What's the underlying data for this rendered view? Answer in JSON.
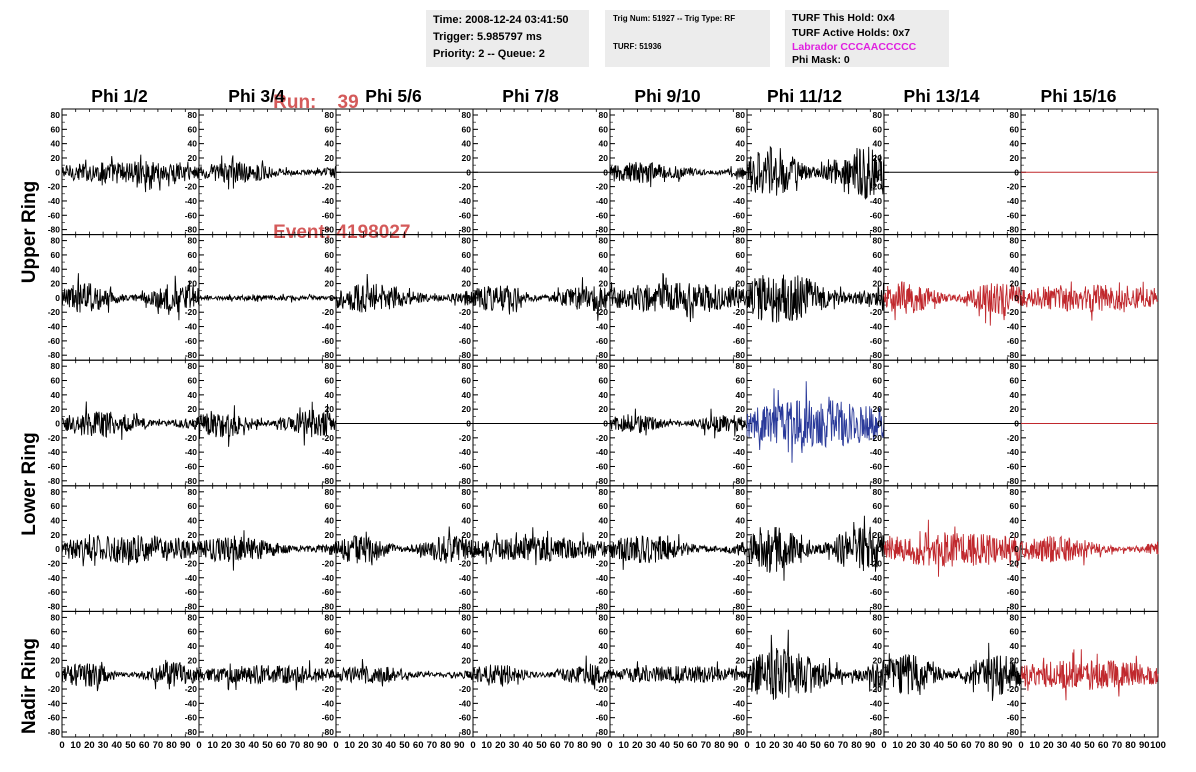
{
  "header": {
    "run_label": "Run:",
    "run_value": "39",
    "event_label": "Event:",
    "event_value": "4198027",
    "run_color": "#d45a5a",
    "time": "Time: 2008-12-24 03:41:50",
    "trigger": "Trigger: 5.985797 ms",
    "priority": "Priority: 2 -- Queue: 2",
    "trig_num": "Trig Num: 51927 -- Trig Type: RF",
    "turf": "TURF: 51936",
    "turf_this_hold": "TURF This Hold: 0x4",
    "turf_active_holds": "TURF Active Holds: 0x7",
    "labrador": "Labrador CCCAACCCCC",
    "labrador_color": "#e020e0",
    "phi_mask": "Phi Mask: 0"
  },
  "columns": [
    "Phi 1/2",
    "Phi 3/4",
    "Phi 5/6",
    "Phi 7/8",
    "Phi 9/10",
    "Phi 11/12",
    "Phi 13/14",
    "Phi 15/16"
  ],
  "rings": [
    "Upper Ring",
    "Lower Ring",
    "Nadir Ring"
  ],
  "chart_data": {
    "type": "line",
    "title": "",
    "xlabel": "",
    "ylabel": "",
    "xlim": [
      0,
      100
    ],
    "ylim": [
      -80,
      80
    ],
    "y_ticks": [
      80,
      60,
      40,
      20,
      0,
      -20,
      -40,
      -60,
      -80
    ],
    "x_ticks": [
      0,
      10,
      20,
      30,
      40,
      50,
      60,
      70,
      80,
      90,
      100
    ],
    "rows": 5,
    "cols": 8,
    "colors": {
      "black": "#000000",
      "red": "#c0282d",
      "blue": "#2a3a9a"
    },
    "panels": [
      {
        "row": 0,
        "col": 0,
        "color": "black",
        "amp": 13,
        "flat": false
      },
      {
        "row": 0,
        "col": 1,
        "color": "black",
        "amp": 12,
        "flat": false
      },
      {
        "row": 0,
        "col": 2,
        "color": "black",
        "amp": 0,
        "flat": true
      },
      {
        "row": 0,
        "col": 3,
        "color": "black",
        "amp": 0,
        "flat": true
      },
      {
        "row": 0,
        "col": 4,
        "color": "black",
        "amp": 13,
        "flat": false
      },
      {
        "row": 0,
        "col": 5,
        "color": "black",
        "amp": 30,
        "flat": false
      },
      {
        "row": 0,
        "col": 6,
        "color": "black",
        "amp": 0,
        "flat": true
      },
      {
        "row": 0,
        "col": 7,
        "color": "red",
        "amp": 0,
        "flat": true
      },
      {
        "row": 1,
        "col": 0,
        "color": "black",
        "amp": 17,
        "flat": false
      },
      {
        "row": 1,
        "col": 1,
        "color": "black",
        "amp": 3,
        "flat": false
      },
      {
        "row": 1,
        "col": 2,
        "color": "black",
        "amp": 17,
        "flat": false
      },
      {
        "row": 1,
        "col": 3,
        "color": "black",
        "amp": 16,
        "flat": false
      },
      {
        "row": 1,
        "col": 4,
        "color": "black",
        "amp": 17,
        "flat": false
      },
      {
        "row": 1,
        "col": 5,
        "color": "black",
        "amp": 30,
        "flat": false
      },
      {
        "row": 1,
        "col": 6,
        "color": "red",
        "amp": 19,
        "flat": false
      },
      {
        "row": 1,
        "col": 7,
        "color": "red",
        "amp": 16,
        "flat": false
      },
      {
        "row": 2,
        "col": 0,
        "color": "black",
        "amp": 15,
        "flat": false
      },
      {
        "row": 2,
        "col": 1,
        "color": "black",
        "amp": 16,
        "flat": false
      },
      {
        "row": 2,
        "col": 2,
        "color": "black",
        "amp": 0,
        "flat": true
      },
      {
        "row": 2,
        "col": 3,
        "color": "black",
        "amp": 0,
        "flat": true
      },
      {
        "row": 2,
        "col": 4,
        "color": "black",
        "amp": 11,
        "flat": false
      },
      {
        "row": 2,
        "col": 5,
        "color": "blue",
        "amp": 27,
        "flat": false
      },
      {
        "row": 2,
        "col": 6,
        "color": "black",
        "amp": 0,
        "flat": true
      },
      {
        "row": 2,
        "col": 7,
        "color": "red",
        "amp": 0,
        "flat": true
      },
      {
        "row": 3,
        "col": 0,
        "color": "black",
        "amp": 16,
        "flat": false
      },
      {
        "row": 3,
        "col": 1,
        "color": "black",
        "amp": 15,
        "flat": false
      },
      {
        "row": 3,
        "col": 2,
        "color": "black",
        "amp": 16,
        "flat": false
      },
      {
        "row": 3,
        "col": 3,
        "color": "black",
        "amp": 14,
        "flat": false
      },
      {
        "row": 3,
        "col": 4,
        "color": "black",
        "amp": 16,
        "flat": false
      },
      {
        "row": 3,
        "col": 5,
        "color": "black",
        "amp": 27,
        "flat": false
      },
      {
        "row": 3,
        "col": 6,
        "color": "red",
        "amp": 20,
        "flat": false
      },
      {
        "row": 3,
        "col": 7,
        "color": "red",
        "amp": 15,
        "flat": false
      },
      {
        "row": 4,
        "col": 0,
        "color": "black",
        "amp": 14,
        "flat": false
      },
      {
        "row": 4,
        "col": 1,
        "color": "black",
        "amp": 11,
        "flat": false
      },
      {
        "row": 4,
        "col": 2,
        "color": "black",
        "amp": 10,
        "flat": false
      },
      {
        "row": 4,
        "col": 3,
        "color": "black",
        "amp": 13,
        "flat": false
      },
      {
        "row": 4,
        "col": 4,
        "color": "black",
        "amp": 10,
        "flat": false
      },
      {
        "row": 4,
        "col": 5,
        "color": "black",
        "amp": 30,
        "flat": false
      },
      {
        "row": 4,
        "col": 6,
        "color": "black",
        "amp": 23,
        "flat": false
      },
      {
        "row": 4,
        "col": 7,
        "color": "red",
        "amp": 17,
        "flat": false
      }
    ]
  }
}
